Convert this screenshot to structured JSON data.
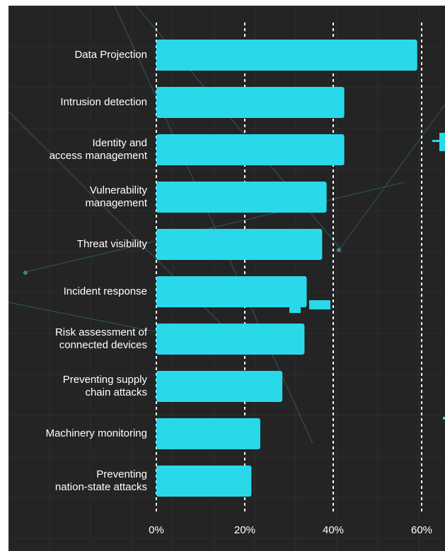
{
  "chart_data": {
    "type": "bar",
    "orientation": "horizontal",
    "categories": [
      "Data Projection",
      "Intrusion detection",
      "Identity and\naccess management",
      "Vulnerability\nmanagement",
      "Threat visibility",
      "Incident response",
      "Risk assessment of\nconnected devices",
      "Preventing supply\nchain attacks",
      "Machinery monitoring",
      "Preventing\nnation-state attacks"
    ],
    "values": [
      59,
      42.5,
      42.5,
      38.5,
      37.5,
      34,
      33.5,
      28.5,
      23.5,
      21.5
    ],
    "xlim": [
      0,
      60
    ],
    "ticks": [
      "0%",
      "20%",
      "40%",
      "60%"
    ],
    "tick_values": [
      0,
      20,
      40,
      60
    ],
    "grid": "vertical dotted",
    "bar_color": "#29d9ea",
    "background": "#242424",
    "text_color": "#ffffff"
  }
}
